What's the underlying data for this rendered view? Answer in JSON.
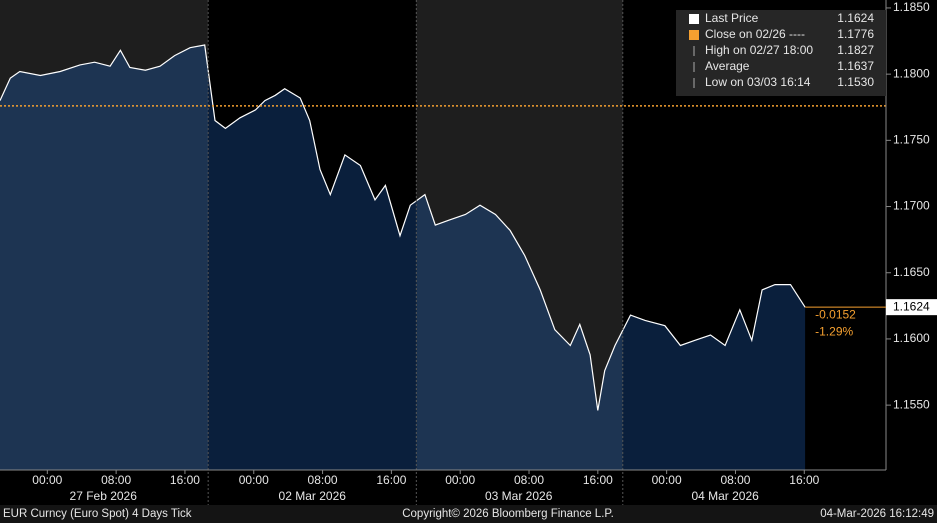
{
  "chart_data": {
    "type": "area",
    "series": [
      {
        "name": "Last Price",
        "color": "#ffffff",
        "x": [
          0,
          1.2,
          2.3,
          4.7,
          7.0,
          9.3,
          11.0,
          12.8,
          14.0,
          15.1,
          16.9,
          18.6,
          20.3,
          22.1,
          23.8,
          25.0,
          26.2,
          27.9,
          29.7,
          30.8,
          32.0,
          33.1,
          34.9,
          36.0,
          37.2,
          38.4,
          40.1,
          41.9,
          43.6,
          44.8,
          46.5,
          47.7,
          49.4,
          50.6,
          52.3,
          54.1,
          55.8,
          57.6,
          59.3,
          61.0,
          62.8,
          64.5,
          66.3,
          67.4,
          68.6,
          69.5,
          70.3,
          71.5,
          73.3,
          75.0,
          77.3,
          79.1,
          80.8,
          82.6,
          84.3,
          86.0,
          87.4,
          88.6,
          90.1,
          91.9,
          93.6
        ],
        "values": [
          1.178,
          1.1797,
          1.1802,
          1.1799,
          1.1802,
          1.1807,
          1.1809,
          1.1806,
          1.1818,
          1.1805,
          1.1803,
          1.1806,
          1.1814,
          1.182,
          1.1822,
          1.1765,
          1.1759,
          1.1767,
          1.1773,
          1.178,
          1.1784,
          1.1789,
          1.1782,
          1.1765,
          1.1728,
          1.1709,
          1.1739,
          1.1731,
          1.1705,
          1.1716,
          1.1678,
          1.1701,
          1.1709,
          1.1686,
          1.169,
          1.1694,
          1.1701,
          1.1694,
          1.1682,
          1.1663,
          1.1637,
          1.1607,
          1.1595,
          1.1611,
          1.1588,
          1.1546,
          1.1576,
          1.1595,
          1.1618,
          1.1614,
          1.161,
          1.1595,
          1.1599,
          1.1603,
          1.1595,
          1.1622,
          1.1599,
          1.1637,
          1.1641,
          1.1641,
          1.1624
        ]
      }
    ],
    "close_line": {
      "value": 1.1776,
      "color": "#f5a030"
    },
    "xlim": [
      0,
      103
    ],
    "ylim": [
      1.1501,
      1.1856
    ],
    "yticks": [
      {
        "value": 1.155,
        "label": "1.1550"
      },
      {
        "value": 1.16,
        "label": "1.1600"
      },
      {
        "value": 1.165,
        "label": "1.1650"
      },
      {
        "value": 1.17,
        "label": "1.1700"
      },
      {
        "value": 1.175,
        "label": "1.1750"
      },
      {
        "value": 1.18,
        "label": "1.1800"
      },
      {
        "value": 1.185,
        "label": "1.1850"
      }
    ],
    "xticks": [
      {
        "value": 5.5,
        "label": "00:00"
      },
      {
        "value": 13.5,
        "label": "08:00"
      },
      {
        "value": 21.5,
        "label": "16:00"
      },
      {
        "value": 29.5,
        "label": "00:00"
      },
      {
        "value": 37.5,
        "label": "08:00"
      },
      {
        "value": 45.5,
        "label": "16:00"
      },
      {
        "value": 53.5,
        "label": "00:00"
      },
      {
        "value": 61.5,
        "label": "08:00"
      },
      {
        "value": 69.5,
        "label": "16:00"
      },
      {
        "value": 77.5,
        "label": "00:00"
      },
      {
        "value": 85.5,
        "label": "08:00"
      },
      {
        "value": 93.5,
        "label": "16:00"
      }
    ],
    "day_labels": [
      {
        "value": 12.0,
        "label": "27 Feb 2026"
      },
      {
        "value": 36.3,
        "label": "02 Mar 2026"
      },
      {
        "value": 60.3,
        "label": "03 Mar 2026"
      },
      {
        "value": 84.3,
        "label": "04 Mar 2026"
      }
    ],
    "session_breaks": [
      24.2,
      48.4,
      72.4
    ],
    "last_price_tag": "1.1624",
    "change_labels": [
      "-0.0152",
      "-1.29%"
    ],
    "legend": [
      {
        "label": "Last Price",
        "value": "1.1624"
      },
      {
        "label": "Close on 02/26 ----",
        "value": "1.1776"
      },
      {
        "label": "High on 02/27 18:00",
        "value": "1.1827"
      },
      {
        "label": "Average",
        "value": "1.1637"
      },
      {
        "label": "Low on 03/03 16:14",
        "value": "1.1530"
      }
    ],
    "footer": {
      "left": "EUR Curncy (Euro Spot) 4 Days Tick",
      "center": "Copyright© 2026 Bloomberg Finance L.P.",
      "right": "04-Mar-2026 16:12:49"
    }
  }
}
